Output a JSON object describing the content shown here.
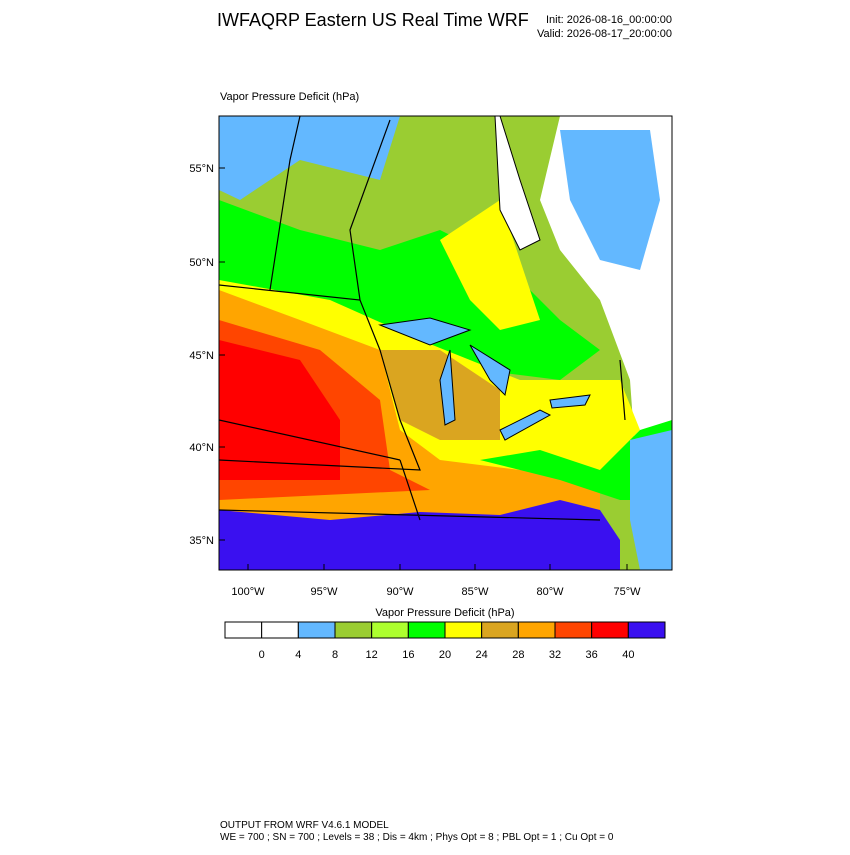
{
  "header": {
    "title": "IWFAQRP Eastern US Real Time WRF",
    "init": "Init: 2026-08-16_00:00:00",
    "valid": "Valid: 2026-08-17_20:00:00"
  },
  "map": {
    "label": "Vapor Pressure Deficit   (hPa)",
    "lat_labels": [
      "55°N",
      "50°N",
      "45°N",
      "40°N",
      "35°N"
    ],
    "lon_labels": [
      "100°W",
      "95°W",
      "90°W",
      "85°W",
      "80°W",
      "75°W"
    ]
  },
  "colorbar": {
    "title": "Vapor Pressure Deficit  (hPa)",
    "labels": [
      "0",
      "4",
      "8",
      "12",
      "16",
      "20",
      "24",
      "28",
      "32",
      "36",
      "40"
    ],
    "colors": [
      "#ffffff",
      "#ffffff",
      "#63b8ff",
      "#9acd32",
      "#adff2f",
      "#00ff00",
      "#ffff00",
      "#daa520",
      "#ffa500",
      "#ff4500",
      "#ff0000",
      "#3a10f0"
    ]
  },
  "footer": {
    "line1": "OUTPUT FROM WRF V4.6.1 MODEL",
    "line2": "WE = 700 ; SN = 700 ; Levels = 38 ; Dis = 4km ; Phys Opt = 8 ; PBL Opt = 1 ; Cu Opt = 0"
  }
}
